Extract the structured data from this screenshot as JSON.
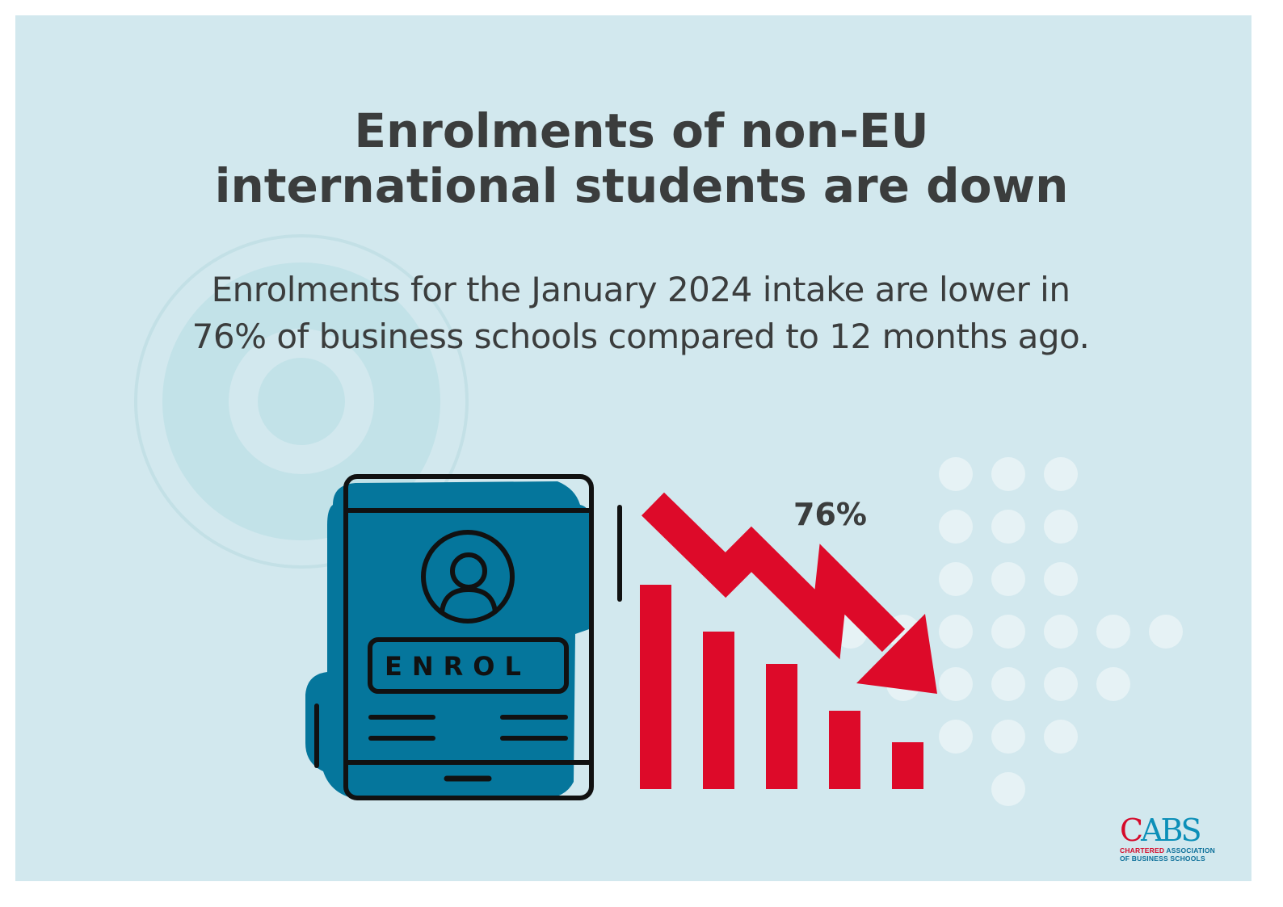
{
  "headline": {
    "line1": "Enrolments of non-EU",
    "line2": "international students are down"
  },
  "subheading": {
    "line1": "Enrolments for the January 2024 intake are lower in",
    "line2": "76% of business schools compared to 12 months ago."
  },
  "illustration": {
    "device_button_label": "ENROL",
    "arrow_value": "76%",
    "icons": [
      "enrolment-tablet-icon",
      "user-icon",
      "downward-trend-arrow-icon",
      "declining-bar-chart-icon"
    ]
  },
  "logo": {
    "mark_first": "C",
    "mark_rest": "ABS",
    "line1_red": "CHARTERED",
    "line1_rest": " ASSOCIATION",
    "line2": "OF BUSINESS SCHOOLS"
  },
  "colors": {
    "background": "#d2e8ee",
    "text": "#3b3d3d",
    "tablet_fill": "#05769c",
    "accent_red": "#dd0a29",
    "logo_blue": "#0c8fb8"
  }
}
